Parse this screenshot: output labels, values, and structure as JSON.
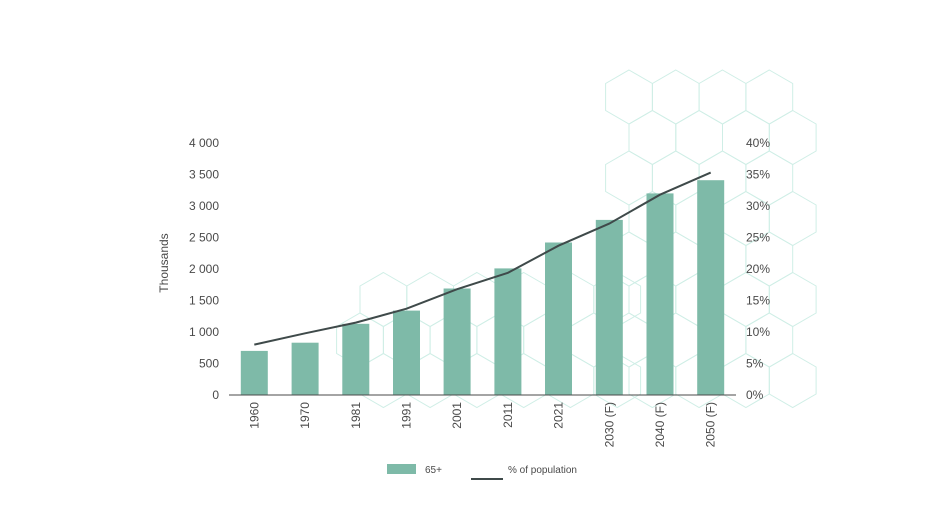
{
  "chart_data": {
    "type": "bar",
    "categories": [
      "1960",
      "1970",
      "1981",
      "1991",
      "2001",
      "2011",
      "2021",
      "2030 (F)",
      "2040 (F)",
      "2050 (F)"
    ],
    "series": [
      {
        "name": "65+",
        "type": "bar",
        "axis": "left",
        "values": [
          700,
          830,
          1130,
          1340,
          1690,
          2010,
          2420,
          2780,
          3200,
          3410
        ]
      },
      {
        "name": "% of population",
        "type": "line",
        "axis": "right",
        "values": [
          8,
          9.8,
          11.5,
          13.7,
          16.8,
          19.4,
          23.7,
          27.2,
          31.8,
          35.3
        ]
      }
    ],
    "ylabel": "Thousands",
    "ylim": [
      0,
      4000
    ],
    "y_ticks": [
      "0",
      "500",
      "1 000",
      "1 500",
      "2 000",
      "2 500",
      "3 000",
      "3 500",
      "4 000"
    ],
    "y2lim": [
      0,
      40
    ],
    "y2_ticks": [
      "0%",
      "5%",
      "10%",
      "15%",
      "20%",
      "25%",
      "30%",
      "35%",
      "40%"
    ],
    "grid": false,
    "legend_placement": "bottom-center"
  },
  "colors": {
    "bar": "#7ebaa8",
    "line": "#3f4a4a",
    "axis": "#4a4a4a",
    "hexagon": "#cfeee6"
  }
}
